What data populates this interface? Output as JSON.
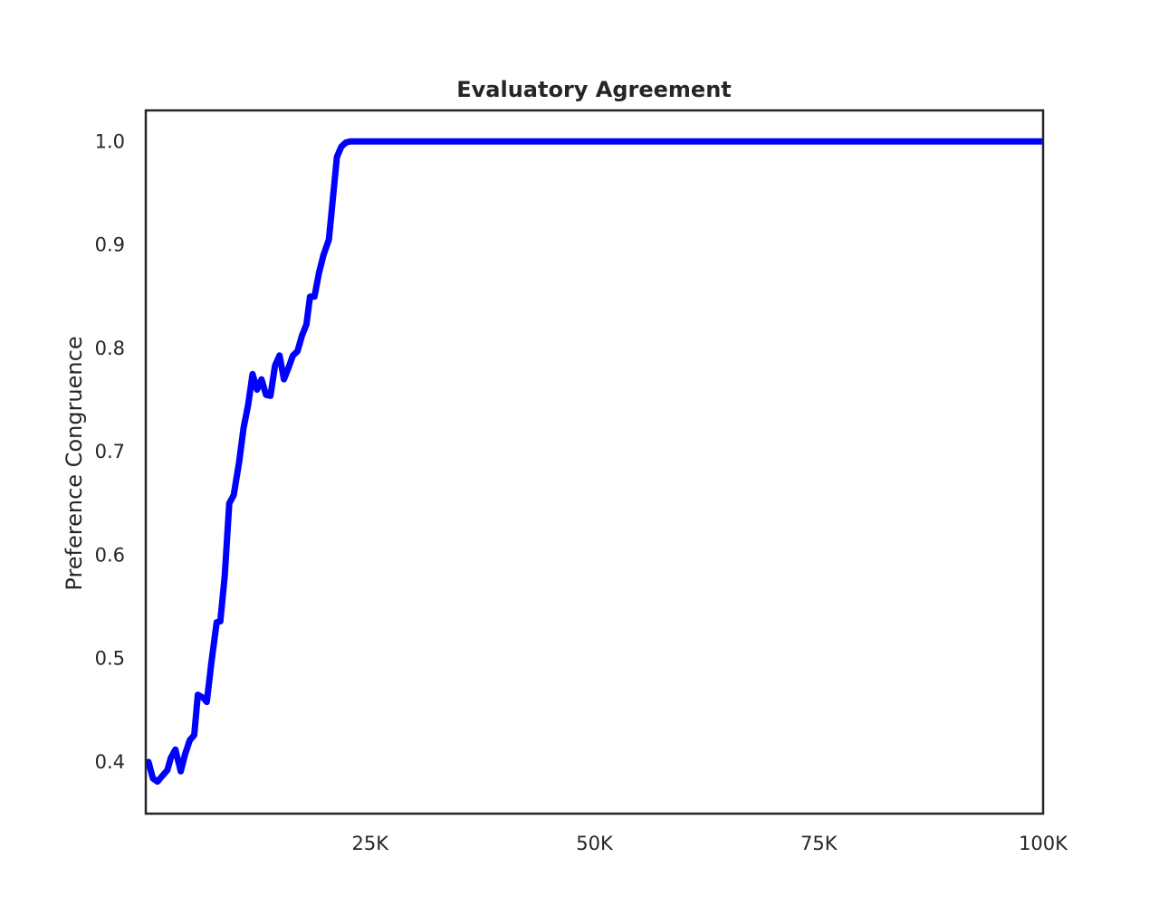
{
  "chart_data": {
    "type": "line",
    "title": "Evaluatory Agreement",
    "xlabel": "",
    "ylabel": "Preference Congruence",
    "xlim": [
      0,
      100000
    ],
    "ylim": [
      0.35,
      1.03
    ],
    "xticks": [
      25000,
      50000,
      75000,
      100000
    ],
    "xtick_labels": [
      "25K",
      "50K",
      "75K",
      "100K"
    ],
    "yticks": [
      0.4,
      0.5,
      0.6,
      0.7,
      0.8,
      0.9,
      1.0
    ],
    "ytick_labels": [
      "0.4",
      "0.5",
      "0.6",
      "0.7",
      "0.8",
      "0.9",
      "1.0"
    ],
    "grid": false,
    "line_color": "#0000ff",
    "series": [
      {
        "x": [
          300,
          800,
          1300,
          1800,
          2400,
          2800,
          3300,
          3900,
          4400,
          4900,
          5400,
          5800,
          6400,
          6800,
          7300,
          7900,
          8300,
          8800,
          9300,
          9800,
          10400,
          10900,
          11400,
          11900,
          12400,
          12900,
          13400,
          13900,
          14400,
          14900,
          15400,
          15900,
          16400,
          16900,
          17400,
          17900,
          18300,
          18800,
          19300,
          19800,
          20400,
          20800,
          21300,
          21800,
          22300,
          22800,
          100000
        ],
        "y": [
          0.4,
          0.384,
          0.381,
          0.386,
          0.392,
          0.404,
          0.412,
          0.391,
          0.408,
          0.421,
          0.426,
          0.465,
          0.462,
          0.458,
          0.495,
          0.535,
          0.536,
          0.58,
          0.65,
          0.658,
          0.69,
          0.723,
          0.745,
          0.775,
          0.76,
          0.77,
          0.755,
          0.754,
          0.783,
          0.793,
          0.77,
          0.781,
          0.793,
          0.797,
          0.812,
          0.823,
          0.85,
          0.85,
          0.873,
          0.89,
          0.905,
          0.94,
          0.985,
          0.995,
          0.999,
          1.0,
          1.0
        ]
      }
    ]
  }
}
